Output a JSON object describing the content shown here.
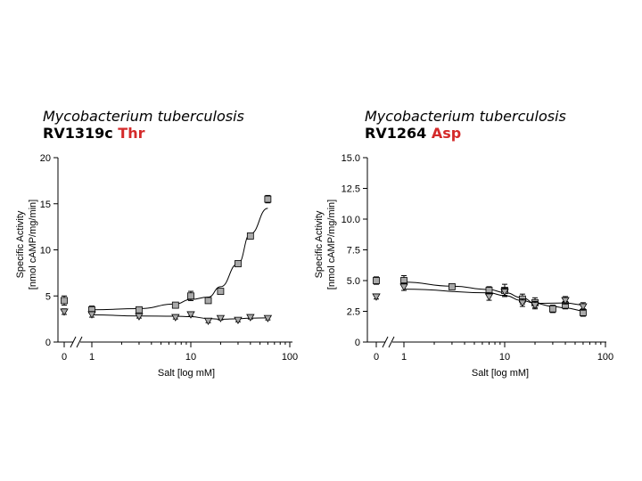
{
  "chart_data": [
    {
      "type": "scatter",
      "title_line1": "Mycobacterium tuberculosis",
      "title_line2_prefix": "RV1319c ",
      "title_line2_accent": "Thr",
      "xlabel": "Salt [log mM]",
      "ylabel_line1": "Specific Activity",
      "ylabel_line2": "[nmol cAMP/mg/min]",
      "x_scale": "log with axis break (0 shown separately)",
      "xlim": [
        1,
        100
      ],
      "ylim": [
        0,
        20
      ],
      "x_ticks": [
        "0",
        "1",
        "10",
        "100"
      ],
      "y_ticks": [
        "0",
        "5",
        "10",
        "15",
        "20"
      ],
      "grid": false,
      "series": [
        {
          "marker": "square",
          "fit_curve": true,
          "points": [
            {
              "x": 0,
              "y": 4.5,
              "err": 0.5
            },
            {
              "x": 1,
              "y": 3.5,
              "err": 0.4
            },
            {
              "x": 3,
              "y": 3.5,
              "err": 0.3
            },
            {
              "x": 7,
              "y": 4.0,
              "err": 0.3
            },
            {
              "x": 10,
              "y": 5.0,
              "err": 0.5
            },
            {
              "x": 15,
              "y": 4.5,
              "err": 0.2
            },
            {
              "x": 20,
              "y": 5.5,
              "err": 0.3
            },
            {
              "x": 30,
              "y": 8.5,
              "err": 0.3
            },
            {
              "x": 40,
              "y": 11.5,
              "err": 0.3
            },
            {
              "x": 60,
              "y": 15.5,
              "err": 0.4
            }
          ]
        },
        {
          "marker": "triangle-down",
          "fit_curve": true,
          "points": [
            {
              "x": 0,
              "y": 3.3,
              "err": 0.3
            },
            {
              "x": 1,
              "y": 3.0,
              "err": 0.3
            },
            {
              "x": 3,
              "y": 2.8,
              "err": 0.2
            },
            {
              "x": 7,
              "y": 2.7,
              "err": 0.2
            },
            {
              "x": 10,
              "y": 3.0,
              "err": 0.2
            },
            {
              "x": 15,
              "y": 2.3,
              "err": 0.2
            },
            {
              "x": 20,
              "y": 2.6,
              "err": 0.2
            },
            {
              "x": 30,
              "y": 2.4,
              "err": 0.2
            },
            {
              "x": 40,
              "y": 2.7,
              "err": 0.2
            },
            {
              "x": 60,
              "y": 2.6,
              "err": 0.2
            }
          ]
        }
      ]
    },
    {
      "type": "scatter",
      "title_line1": "Mycobacterium tuberculosis",
      "title_line2_prefix": "RV1264 ",
      "title_line2_accent": "Asp",
      "xlabel": "Salt [log mM]",
      "ylabel_line1": "Specific Activity",
      "ylabel_line2": "[nmol cAMP/mg/min]",
      "x_scale": "log with axis break (0 shown separately)",
      "xlim": [
        1,
        100
      ],
      "ylim": [
        0,
        15
      ],
      "x_ticks": [
        "0",
        "1",
        "10",
        "100"
      ],
      "y_ticks": [
        "0",
        "2.5",
        "5.0",
        "7.5",
        "10.0",
        "12.5",
        "15.0"
      ],
      "grid": false,
      "series": [
        {
          "marker": "square",
          "fit_curve": true,
          "points": [
            {
              "x": 0,
              "y": 5.0,
              "err": 0.3
            },
            {
              "x": 1,
              "y": 5.0,
              "err": 0.4
            },
            {
              "x": 3,
              "y": 4.5,
              "err": 0.2
            },
            {
              "x": 7,
              "y": 4.2,
              "err": 0.3
            },
            {
              "x": 10,
              "y": 4.2,
              "err": 0.5
            },
            {
              "x": 15,
              "y": 3.5,
              "err": 0.4
            },
            {
              "x": 20,
              "y": 3.2,
              "err": 0.4
            },
            {
              "x": 30,
              "y": 2.7,
              "err": 0.3
            },
            {
              "x": 40,
              "y": 3.0,
              "err": 0.3
            },
            {
              "x": 60,
              "y": 2.4,
              "err": 0.3
            }
          ]
        },
        {
          "marker": "triangle-down",
          "fit_curve": true,
          "points": [
            {
              "x": 0,
              "y": 3.7,
              "err": 0.2
            },
            {
              "x": 1,
              "y": 4.5,
              "err": 0.3
            },
            {
              "x": 7,
              "y": 3.7,
              "err": 0.3
            },
            {
              "x": 10,
              "y": 4.1,
              "err": 0.3
            },
            {
              "x": 15,
              "y": 3.2,
              "err": 0.3
            },
            {
              "x": 20,
              "y": 3.0,
              "err": 0.3
            },
            {
              "x": 40,
              "y": 3.4,
              "err": 0.3
            },
            {
              "x": 60,
              "y": 2.9,
              "err": 0.3
            }
          ]
        }
      ]
    }
  ]
}
